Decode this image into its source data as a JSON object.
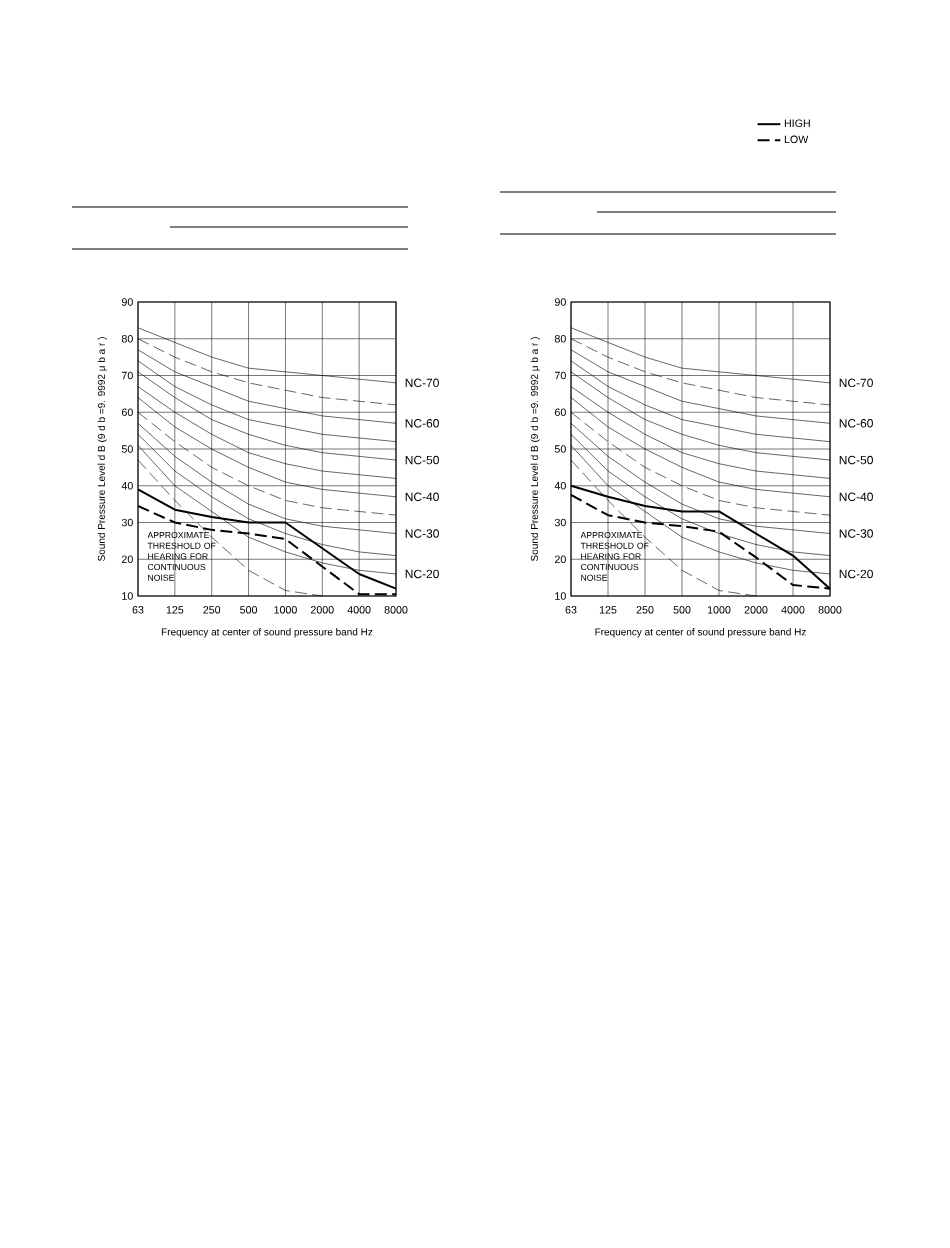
{
  "chart_data": [
    {
      "type": "line",
      "categories": [
        "63",
        "125",
        "250",
        "500",
        "1000",
        "2000",
        "4000",
        "8000"
      ],
      "xlabel": "Frequency at center of sound pressure band    Hz",
      "ylabel": "Sound Pressure Level    d B    (9 d b =9.  9992 μ b a r )",
      "ylim": [
        10,
        90
      ],
      "yticks": [
        10,
        20,
        30,
        40,
        50,
        60,
        70,
        80,
        90
      ],
      "grid": true,
      "annotations": [
        "APPROXIMATE THRESHOLD OF HEARING FOR CONTINUOUS NOISE"
      ],
      "series": [
        {
          "name": "NC-70",
          "color": "#000000",
          "values": [
            83,
            79,
            75,
            72,
            71,
            70,
            69,
            68
          ]
        },
        {
          "color": "#000000",
          "line_style": "dashed",
          "values": [
            80,
            75,
            71,
            68,
            66,
            64,
            63,
            62
          ]
        },
        {
          "name": "NC-60",
          "color": "#000000",
          "values": [
            77,
            71,
            67,
            63,
            61,
            59,
            58,
            57
          ]
        },
        {
          "color": "#000000",
          "values": [
            74,
            67,
            62,
            58,
            56,
            54,
            53,
            52
          ]
        },
        {
          "name": "NC-50",
          "color": "#000000",
          "values": [
            71,
            64,
            58,
            54,
            51,
            49,
            48,
            47
          ]
        },
        {
          "color": "#000000",
          "values": [
            67,
            60,
            54,
            49,
            46,
            44,
            43,
            42
          ]
        },
        {
          "name": "NC-40",
          "color": "#000000",
          "values": [
            64,
            56,
            50,
            45,
            41,
            39,
            38,
            37
          ]
        },
        {
          "color": "#000000",
          "line_style": "dashed",
          "values": [
            60,
            52,
            45,
            40,
            36,
            34,
            33,
            32
          ]
        },
        {
          "name": "NC-30",
          "color": "#000000",
          "values": [
            57,
            48,
            41,
            35,
            31,
            29,
            28,
            27
          ]
        },
        {
          "color": "#000000",
          "values": [
            54,
            44,
            37,
            31,
            27,
            24,
            22,
            21
          ]
        },
        {
          "name": "NC-20",
          "color": "#000000",
          "values": [
            51,
            40,
            33,
            26,
            22,
            19,
            17,
            16
          ]
        },
        {
          "color": "#000000",
          "line_style": "dashed",
          "values": [
            47,
            36,
            26,
            17,
            11.5,
            10,
            null,
            null
          ]
        },
        {
          "color": "#000000",
          "values": [
            39,
            33.5,
            31.5,
            30,
            30,
            23,
            16,
            12
          ]
        },
        {
          "color": "#000000",
          "line_style": "dashed",
          "values": [
            34.5,
            30,
            28,
            27,
            25.5,
            18,
            10.5,
            10.5
          ]
        }
      ]
    },
    {
      "type": "line",
      "categories": [
        "63",
        "125",
        "250",
        "500",
        "1000",
        "2000",
        "4000",
        "8000"
      ],
      "xlabel": "Frequency at center of sound pressure band    Hz",
      "ylabel": "Sound Pressure Level    d B    (9 d b =9.  9992 μ b a r )",
      "ylim": [
        10,
        90
      ],
      "yticks": [
        10,
        20,
        30,
        40,
        50,
        60,
        70,
        80,
        90
      ],
      "grid": true,
      "legend": "top right",
      "annotations": [
        "APPROXIMATE THRESHOLD OF HEARING FOR CONTINUOUS NOISE"
      ],
      "series": [
        {
          "name": "NC-70",
          "color": "#000000",
          "values": [
            83,
            79,
            75,
            72,
            71,
            70,
            69,
            68
          ]
        },
        {
          "color": "#000000",
          "line_style": "dashed",
          "values": [
            80,
            75,
            71,
            68,
            66,
            64,
            63,
            62
          ]
        },
        {
          "name": "NC-60",
          "color": "#000000",
          "values": [
            77,
            71,
            67,
            63,
            61,
            59,
            58,
            57
          ]
        },
        {
          "color": "#000000",
          "values": [
            74,
            67,
            62,
            58,
            56,
            54,
            53,
            52
          ]
        },
        {
          "name": "NC-50",
          "color": "#000000",
          "values": [
            71,
            64,
            58,
            54,
            51,
            49,
            48,
            47
          ]
        },
        {
          "color": "#000000",
          "values": [
            67,
            60,
            54,
            49,
            46,
            44,
            43,
            42
          ]
        },
        {
          "name": "NC-40",
          "color": "#000000",
          "values": [
            64,
            56,
            50,
            45,
            41,
            39,
            38,
            37
          ]
        },
        {
          "color": "#000000",
          "line_style": "dashed",
          "values": [
            60,
            52,
            45,
            40,
            36,
            34,
            33,
            32
          ]
        },
        {
          "name": "NC-30",
          "color": "#000000",
          "values": [
            57,
            48,
            41,
            35,
            31,
            29,
            28,
            27
          ]
        },
        {
          "color": "#000000",
          "values": [
            54,
            44,
            37,
            31,
            27,
            24,
            22,
            21
          ]
        },
        {
          "name": "NC-20",
          "color": "#000000",
          "values": [
            51,
            40,
            33,
            26,
            22,
            19,
            17,
            16
          ]
        },
        {
          "color": "#000000",
          "line_style": "dashed",
          "values": [
            47,
            36,
            26,
            17,
            11.5,
            10,
            null,
            null
          ]
        },
        {
          "name": "HIGH",
          "color": "#000000",
          "values": [
            40,
            37,
            34.5,
            33,
            33,
            27,
            21,
            12
          ]
        },
        {
          "name": "LOW",
          "color": "#000000",
          "line_style": "dashed",
          "values": [
            37.5,
            32,
            30,
            29,
            27.5,
            20.5,
            13,
            12
          ]
        }
      ]
    }
  ]
}
